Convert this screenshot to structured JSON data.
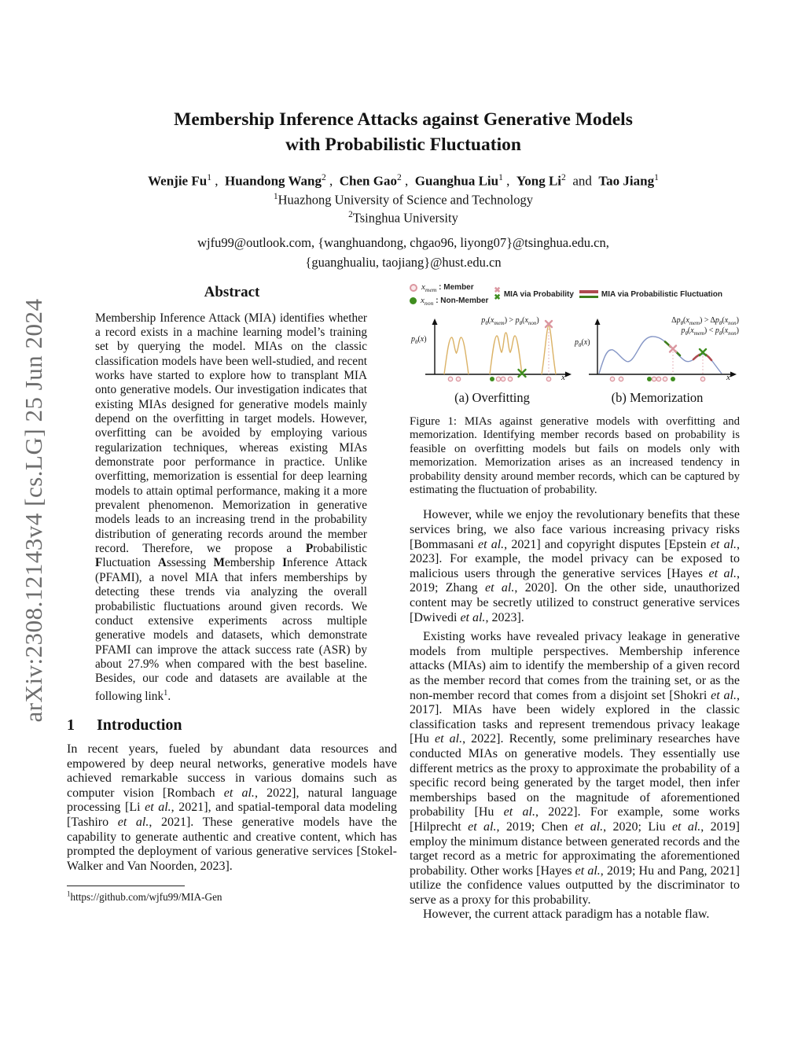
{
  "watermark": "arXiv:2308.12143v4  [cs.LG]  25 Jun 2024",
  "header": {
    "title_line1": "Membership Inference Attacks against Generative Models",
    "title_line2": "with Probabilistic Fluctuation",
    "authors_html": "<b>Wenjie Fu</b><sup>1</sup> ,&nbsp; <b>Huandong Wang</b><sup>2</sup> ,&nbsp; <b>Chen Gao</b><sup>2</sup> ,&nbsp; <b>Guanghua Liu</b><sup>1</sup> ,&nbsp; <b>Yong Li</b><sup>2</sup> &nbsp;and&nbsp; <b>Tao Jiang</b><sup>1</sup>",
    "affiliation1_html": "<sup>1</sup>Huazhong University of Science and Technology",
    "affiliation2_html": "<sup>2</sup>Tsinghua University",
    "emails_line1": "wjfu99@outlook.com, {wanghuandong, chgao96, liyong07}@tsinghua.edu.cn,",
    "emails_line2": "{guanghualiu, taojiang}@hust.edu.cn"
  },
  "abstract": {
    "heading": "Abstract",
    "body_html": "Membership Inference Attack (MIA) identifies whether a record exists in a machine learning model’s training set by querying the model. MIAs on the classic classification models have been well-studied, and recent works have started to explore how to transplant MIA onto generative models. Our investigation indicates that existing MIAs designed for generative models mainly depend on the overfitting in target models. However, overfitting can be avoided by employing various regularization techniques, whereas existing MIAs demonstrate poor performance in practice. Unlike overfitting, memorization is essential for deep learning models to attain optimal performance, making it a more prevalent phenomenon. Memorization in generative models leads to an increasing trend in the probability distribution of generating records around the member record. Therefore, we propose a <b>P</b>robabilistic <b>F</b>luctuation <b>A</b>ssessing <b>M</b>embership <b>I</b>nference Attack (PFAMI), a novel MIA that infers memberships by detecting these trends via analyzing the overall probabilistic fluctuations around given records. We conduct extensive experiments across multiple generative models and datasets, which demonstrate PFAMI can improve the attack success rate (ASR) by about 27.9% when compared with the best baseline. Besides, our code and datasets are available at the following link<sup>1</sup>."
  },
  "introduction": {
    "heading_number": "1",
    "heading_label": "Introduction",
    "p1_html": "In recent years, fueled by abundant data resources and empowered by deep neural networks, generative models have achieved remarkable success in various domains such as computer vision [Rombach <i>et al.</i>, 2022], natural language processing [Li <i>et al.</i>, 2021], and spatial-temporal data modeling [Tashiro <i>et al.</i>, 2021]. These generative models have the capability to generate authentic and creative content, which has prompted the deployment of various generative services [Stokel-Walker and Van Noorden, 2023].",
    "footnote_html": "<sup>1</sup>https://github.com/wjfu99/MIA-Gen"
  },
  "figure1": {
    "legend": {
      "member_label_html": "<span class=\"m\"><i>x</i><sub>mem</sub></span> : Member",
      "nonmember_label_html": "<span class=\"m\"><i>x</i><sub>non</sub></span> : Non-Member",
      "prob_label": "MIA via Probability",
      "fluct_label": "MIA via Probabilistic Fluctuation"
    },
    "plot_a": {
      "ylabel_html": "<i>p</i><sub><i>θ</i></sub>(<i>x</i>)",
      "xlabel": "x",
      "annotation_html": "<i>p</i><sub><i>θ</i></sub>(<i>x</i><sub><i>mem</i></sub>) &gt; <i>p</i><sub><i>θ</i></sub>(<i>x</i><sub><i>non</i></sub>)",
      "caption": "(a) Overfitting"
    },
    "plot_b": {
      "ylabel_html": "<i>p</i><sub><i>θ</i></sub>(<i>x</i>)",
      "xlabel": "x",
      "annotation1_html": "Δ<i>p</i><sub><i>θ</i></sub>(<i>x</i><sub><i>mem</i></sub>) &gt; Δ<i>p</i><sub><i>θ</i></sub>(<i>x</i><sub><i>non</i></sub>)",
      "annotation2_html": "<i>p</i><sub><i>θ</i></sub>(<i>x</i><sub><i>mem</i></sub>) &lt; <i>p</i><sub><i>θ</i></sub>(<i>x</i><sub><i>non</i></sub>)",
      "caption": "(b) Memorization"
    },
    "caption_html": "Figure 1: MIAs against generative models with overfitting and memorization. Identifying member records based on probability is feasible on overfitting models but fails on models only with memorization. Memorization arises as an increased tendency in probability density around member records, which can be captured by estimating the fluctuation of probability."
  },
  "main_right": {
    "p1_html": "However, while we enjoy the revolutionary benefits that these services bring, we also face various increasing privacy risks [Bommasani <i>et al.</i>, 2021] and copyright disputes [Epstein <i>et al.</i>, 2023]. For example, the model privacy can be exposed to malicious users through the generative services [Hayes <i>et al.</i>, 2019; Zhang <i>et al.</i>, 2020]. On the other side, unauthorized content may be secretly utilized to construct generative services [Dwivedi <i>et al.</i>, 2023].",
    "p2_html": "Existing works have revealed privacy leakage in generative models from multiple perspectives. Membership inference attacks (MIAs) aim to identify the membership of a given record as the member record that comes from the training set, or as the non-member record that comes from a disjoint set [Shokri <i>et al.</i>, 2017]. MIAs have been widely explored in the classic classification tasks and represent tremendous privacy leakage [Hu <i>et al.</i>, 2022]. Recently, some preliminary researches have conducted MIAs on generative models. They essentially use different metrics as the proxy to approximate the probability of a specific record being generated by the target model, then infer memberships based on the magnitude of aforementioned probability [Hu <i>et al.</i>, 2022]. For example, some works [Hilprecht <i>et al.</i>, 2019; Chen <i>et al.</i>, 2020; Liu <i>et al.</i>, 2019] employ the minimum distance between generated records and the target record as a metric for approximating the aforementioned probability. Other works [Hayes <i>et al.</i>, 2019; Hu and Pang, 2021] utilize the confidence values outputted by the discriminator to serve as a proxy for this probability.",
    "p3_html": "However, the current attack paradigm has a notable flaw."
  },
  "colors": {
    "watermark": "#6e6e6e",
    "curve_overfitting": "#DBB266",
    "curve_memorization": "#8495C5",
    "member_pink": "#DB97A0",
    "member_pink_fill": "#FAE9EB",
    "nonmember_green": "#3F8D1F",
    "fluct_red": "#AE4A50",
    "fluct_green": "#3E7E1C",
    "dotted_pink": "#E2A7AE"
  }
}
